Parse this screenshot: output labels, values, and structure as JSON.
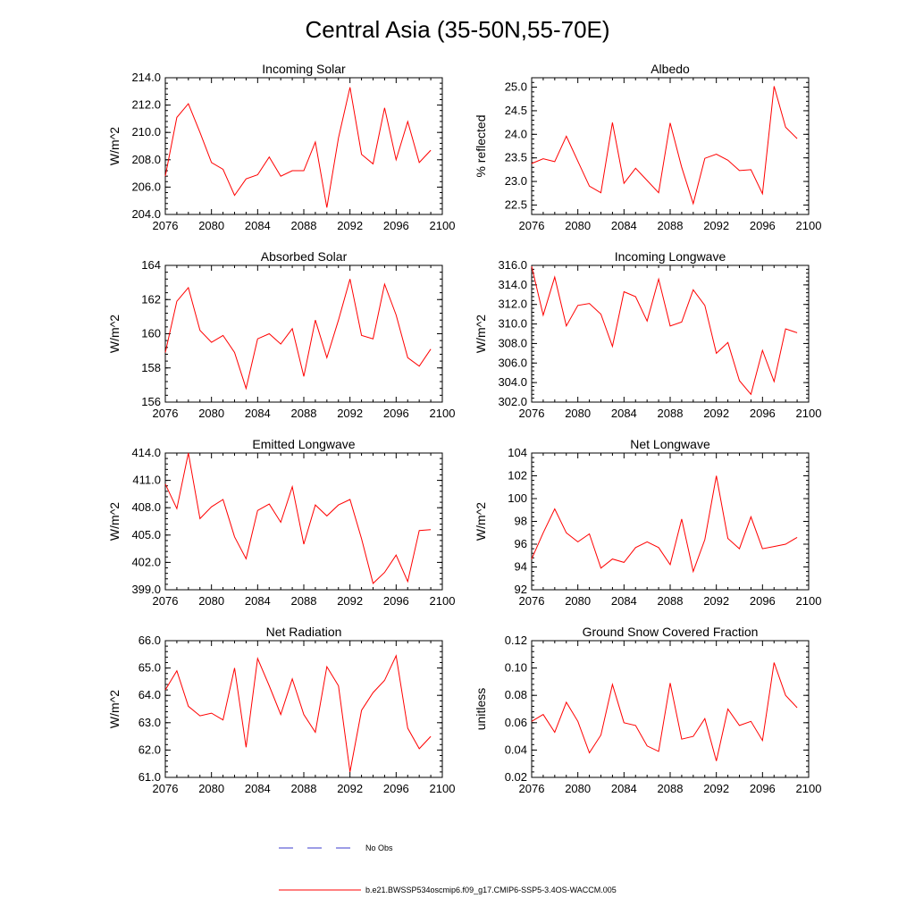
{
  "title": "Central Asia (35-50N,55-70E)",
  "legend": {
    "obs_label": "No Obs",
    "model_label": "b.e21.BWSSP534oscmip6.f09_g17.CMIP6-SSP5-3.4OS-WACCM.005",
    "obs_color": "#3b3bcc",
    "model_color": "#ff0000"
  },
  "colors": {
    "series": "#ff0000",
    "axis": "#000000"
  },
  "chart_data": [
    {
      "type": "line",
      "title": "Incoming Solar",
      "ylabel": "W/m^2",
      "xlim": [
        2076,
        2100
      ],
      "ylim": [
        204.0,
        214.0
      ],
      "xticks": [
        2076,
        2080,
        2084,
        2088,
        2092,
        2096,
        2100
      ],
      "yticks": [
        "204.0",
        "206.0",
        "208.0",
        "210.0",
        "212.0",
        "214.0"
      ],
      "x": [
        2076,
        2077,
        2078,
        2079,
        2080,
        2081,
        2082,
        2083,
        2084,
        2085,
        2086,
        2087,
        2088,
        2089,
        2090,
        2091,
        2092,
        2093,
        2094,
        2095,
        2096,
        2097,
        2098,
        2099
      ],
      "values": [
        206.8,
        211.1,
        212.1,
        210.0,
        207.8,
        207.3,
        205.4,
        206.6,
        206.9,
        208.2,
        206.8,
        207.2,
        207.2,
        209.3,
        204.5,
        209.6,
        213.3,
        208.4,
        207.7,
        211.8,
        208.0,
        210.8,
        207.8,
        208.7
      ]
    },
    {
      "type": "line",
      "title": "Albedo",
      "ylabel": "% reflected",
      "xlim": [
        2076,
        2100
      ],
      "ylim": [
        22.3,
        25.2
      ],
      "xticks": [
        2076,
        2080,
        2084,
        2088,
        2092,
        2096,
        2100
      ],
      "yticks": [
        "22.5",
        "23.0",
        "23.5",
        "24.0",
        "24.5",
        "25.0"
      ],
      "x": [
        2076,
        2077,
        2078,
        2079,
        2080,
        2081,
        2082,
        2083,
        2084,
        2085,
        2086,
        2087,
        2088,
        2089,
        2090,
        2091,
        2092,
        2093,
        2094,
        2095,
        2096,
        2097,
        2098,
        2099
      ],
      "values": [
        23.38,
        23.48,
        23.42,
        23.96,
        23.43,
        22.9,
        22.76,
        24.25,
        22.96,
        23.28,
        23.02,
        22.76,
        24.24,
        23.3,
        22.53,
        23.49,
        23.58,
        23.45,
        23.23,
        23.25,
        22.74,
        25.02,
        24.15,
        23.91
      ]
    },
    {
      "type": "line",
      "title": "Absorbed Solar",
      "ylabel": "W/m^2",
      "xlim": [
        2076,
        2100
      ],
      "ylim": [
        156,
        164
      ],
      "xticks": [
        2076,
        2080,
        2084,
        2088,
        2092,
        2096,
        2100
      ],
      "yticks": [
        "156",
        "158",
        "160",
        "162",
        "164"
      ],
      "x": [
        2076,
        2077,
        2078,
        2079,
        2080,
        2081,
        2082,
        2083,
        2084,
        2085,
        2086,
        2087,
        2088,
        2089,
        2090,
        2091,
        2092,
        2093,
        2094,
        2095,
        2096,
        2097,
        2098,
        2099
      ],
      "values": [
        158.9,
        161.9,
        162.7,
        160.2,
        159.5,
        159.9,
        158.9,
        156.8,
        159.7,
        160.0,
        159.4,
        160.3,
        157.5,
        160.8,
        158.6,
        160.8,
        163.2,
        159.9,
        159.7,
        162.9,
        161.1,
        158.6,
        158.1,
        159.1
      ]
    },
    {
      "type": "line",
      "title": "Incoming Longwave",
      "ylabel": "W/m^2",
      "xlim": [
        2076,
        2100
      ],
      "ylim": [
        302.0,
        316.0
      ],
      "xticks": [
        2076,
        2080,
        2084,
        2088,
        2092,
        2096,
        2100
      ],
      "yticks": [
        "302.0",
        "304.0",
        "306.0",
        "308.0",
        "310.0",
        "312.0",
        "314.0",
        "316.0"
      ],
      "x": [
        2076,
        2077,
        2078,
        2079,
        2080,
        2081,
        2082,
        2083,
        2084,
        2085,
        2086,
        2087,
        2088,
        2089,
        2090,
        2091,
        2092,
        2093,
        2094,
        2095,
        2096,
        2097,
        2098,
        2099
      ],
      "values": [
        315.9,
        310.9,
        314.8,
        309.8,
        311.9,
        312.1,
        311.0,
        307.7,
        313.3,
        312.8,
        310.3,
        314.6,
        309.8,
        310.2,
        313.5,
        311.9,
        307.0,
        308.1,
        304.2,
        302.8,
        307.3,
        304.1,
        309.5,
        309.1
      ]
    },
    {
      "type": "line",
      "title": "Emitted Longwave",
      "ylabel": "W/m^2",
      "xlim": [
        2076,
        2100
      ],
      "ylim": [
        399.0,
        414.0
      ],
      "xticks": [
        2076,
        2080,
        2084,
        2088,
        2092,
        2096,
        2100
      ],
      "yticks": [
        "399.0",
        "402.0",
        "405.0",
        "408.0",
        "411.0",
        "414.0"
      ],
      "x": [
        2076,
        2077,
        2078,
        2079,
        2080,
        2081,
        2082,
        2083,
        2084,
        2085,
        2086,
        2087,
        2088,
        2089,
        2090,
        2091,
        2092,
        2093,
        2094,
        2095,
        2096,
        2097,
        2098,
        2099
      ],
      "values": [
        410.6,
        407.9,
        414.0,
        406.8,
        408.1,
        408.9,
        404.8,
        402.4,
        407.7,
        408.4,
        406.4,
        410.3,
        404.0,
        408.3,
        407.1,
        408.3,
        408.9,
        404.6,
        399.7,
        400.9,
        402.8,
        399.9,
        405.5,
        405.6
      ]
    },
    {
      "type": "line",
      "title": "Net Longwave",
      "ylabel": "W/m^2",
      "xlim": [
        2076,
        2100
      ],
      "ylim": [
        92,
        104
      ],
      "xticks": [
        2076,
        2080,
        2084,
        2088,
        2092,
        2096,
        2100
      ],
      "yticks": [
        "92",
        "94",
        "96",
        "98",
        "100",
        "102",
        "104"
      ],
      "x": [
        2076,
        2077,
        2078,
        2079,
        2080,
        2081,
        2082,
        2083,
        2084,
        2085,
        2086,
        2087,
        2088,
        2089,
        2090,
        2091,
        2092,
        2093,
        2094,
        2095,
        2096,
        2097,
        2098,
        2099
      ],
      "values": [
        94.7,
        97.0,
        99.1,
        97.0,
        96.2,
        96.9,
        93.9,
        94.7,
        94.4,
        95.7,
        96.2,
        95.7,
        94.2,
        98.2,
        93.6,
        96.4,
        102.0,
        96.5,
        95.6,
        98.4,
        95.6,
        95.8,
        96.0,
        96.6
      ]
    },
    {
      "type": "line",
      "title": "Net Radiation",
      "ylabel": "W/m^2",
      "xlim": [
        2076,
        2100
      ],
      "ylim": [
        61.0,
        66.0
      ],
      "xticks": [
        2076,
        2080,
        2084,
        2088,
        2092,
        2096,
        2100
      ],
      "yticks": [
        "61.0",
        "62.0",
        "63.0",
        "64.0",
        "65.0",
        "66.0"
      ],
      "x": [
        2076,
        2077,
        2078,
        2079,
        2080,
        2081,
        2082,
        2083,
        2084,
        2085,
        2086,
        2087,
        2088,
        2089,
        2090,
        2091,
        2092,
        2093,
        2094,
        2095,
        2096,
        2097,
        2098,
        2099
      ],
      "values": [
        64.2,
        64.9,
        63.6,
        63.25,
        63.35,
        63.1,
        65.0,
        62.1,
        65.35,
        64.35,
        63.3,
        64.6,
        63.3,
        62.65,
        65.05,
        64.35,
        61.2,
        63.45,
        64.1,
        64.55,
        65.45,
        62.8,
        62.05,
        62.5
      ]
    },
    {
      "type": "line",
      "title": "Ground Snow Covered Fraction",
      "ylabel": "unitless",
      "xlim": [
        2076,
        2100
      ],
      "ylim": [
        0.02,
        0.12
      ],
      "xticks": [
        2076,
        2080,
        2084,
        2088,
        2092,
        2096,
        2100
      ],
      "yticks": [
        "0.02",
        "0.04",
        "0.06",
        "0.08",
        "0.10",
        "0.12"
      ],
      "x": [
        2076,
        2077,
        2078,
        2079,
        2080,
        2081,
        2082,
        2083,
        2084,
        2085,
        2086,
        2087,
        2088,
        2089,
        2090,
        2091,
        2092,
        2093,
        2094,
        2095,
        2096,
        2097,
        2098,
        2099
      ],
      "values": [
        0.061,
        0.066,
        0.053,
        0.075,
        0.061,
        0.038,
        0.051,
        0.088,
        0.06,
        0.058,
        0.043,
        0.039,
        0.089,
        0.048,
        0.05,
        0.063,
        0.032,
        0.07,
        0.058,
        0.061,
        0.047,
        0.104,
        0.08,
        0.071
      ]
    }
  ]
}
